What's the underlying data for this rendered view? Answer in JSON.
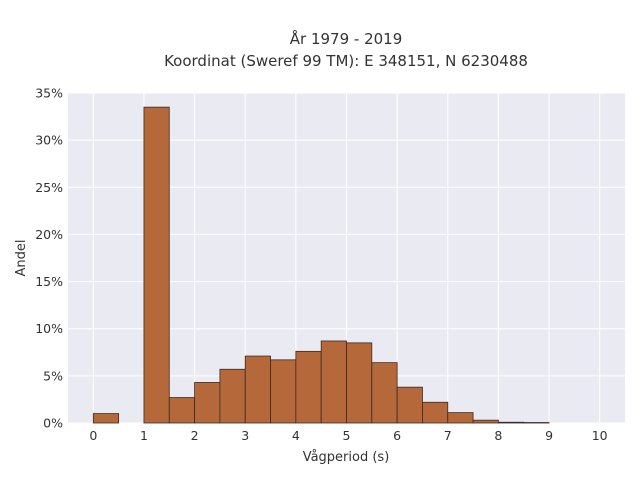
{
  "chart_data": {
    "type": "bar",
    "title_line1": "År 1979 - 2019",
    "title_line2": "Koordinat (Sweref 99 TM): E 348151, N 6230488",
    "xlabel": "Vågperiod (s)",
    "ylabel": "Andel",
    "x_ticks": [
      "0",
      "1",
      "2",
      "3",
      "4",
      "5",
      "6",
      "7",
      "8",
      "9",
      "10"
    ],
    "y_ticks": [
      "0%",
      "5%",
      "10%",
      "15%",
      "20%",
      "25%",
      "30%",
      "35%"
    ],
    "xlim": [
      -0.5,
      10.5
    ],
    "ylim": [
      0,
      35
    ],
    "bin_width": 0.5,
    "bins": [
      {
        "x0": 0.0,
        "value": 1.0
      },
      {
        "x0": 0.5,
        "value": 0.0
      },
      {
        "x0": 1.0,
        "value": 33.5
      },
      {
        "x0": 1.5,
        "value": 2.7
      },
      {
        "x0": 2.0,
        "value": 4.3
      },
      {
        "x0": 2.5,
        "value": 5.7
      },
      {
        "x0": 3.0,
        "value": 7.1
      },
      {
        "x0": 3.5,
        "value": 6.7
      },
      {
        "x0": 4.0,
        "value": 7.6
      },
      {
        "x0": 4.5,
        "value": 8.7
      },
      {
        "x0": 5.0,
        "value": 8.5
      },
      {
        "x0": 5.5,
        "value": 6.4
      },
      {
        "x0": 6.0,
        "value": 3.8
      },
      {
        "x0": 6.5,
        "value": 2.2
      },
      {
        "x0": 7.0,
        "value": 1.1
      },
      {
        "x0": 7.5,
        "value": 0.3
      },
      {
        "x0": 8.0,
        "value": 0.08
      },
      {
        "x0": 8.5,
        "value": 0.05
      }
    ],
    "grid": true,
    "colors": {
      "bar_fill": "#b5693a",
      "bar_stroke": "#3b2a20",
      "plot_bg": "#eaeaf2",
      "grid": "#ffffff"
    }
  }
}
